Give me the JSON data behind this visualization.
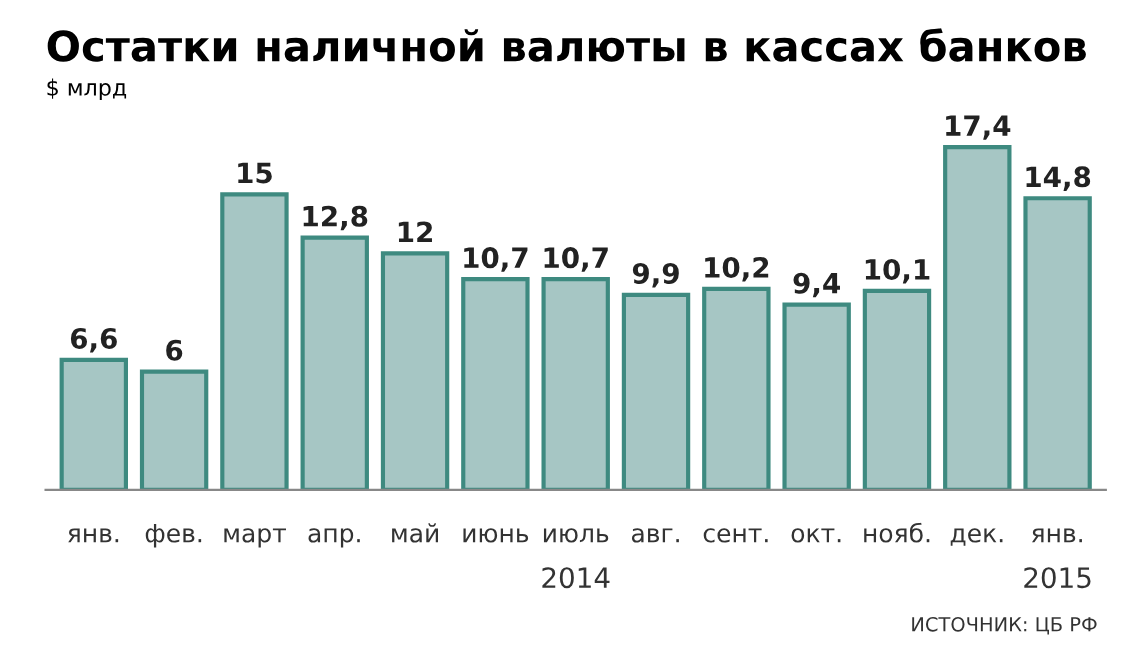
{
  "chart_data": {
    "type": "bar",
    "title": "Остатки наличной валюты в кассах банков",
    "ylabel": "$ млрд",
    "categories": [
      "янв.",
      "фев.",
      "март",
      "апр.",
      "май",
      "июнь",
      "июль",
      "авг.",
      "сент.",
      "окт.",
      "нояб.",
      "дек.",
      "янв."
    ],
    "values": [
      6.6,
      6,
      15,
      12.8,
      12,
      10.7,
      10.7,
      9.9,
      10.2,
      9.4,
      10.1,
      17.4,
      14.8
    ],
    "value_labels": [
      "6,6",
      "6",
      "15",
      "12,8",
      "12",
      "10,7",
      "10,7",
      "9,9",
      "10,2",
      "9,4",
      "10,1",
      "17,4",
      "14,8"
    ],
    "color": "#a6c6c4",
    "tick_labels": "x",
    "annotations": [
      "2014",
      "2015",
      "ИСТОЧНИК: ЦБ РФ"
    ]
  }
}
